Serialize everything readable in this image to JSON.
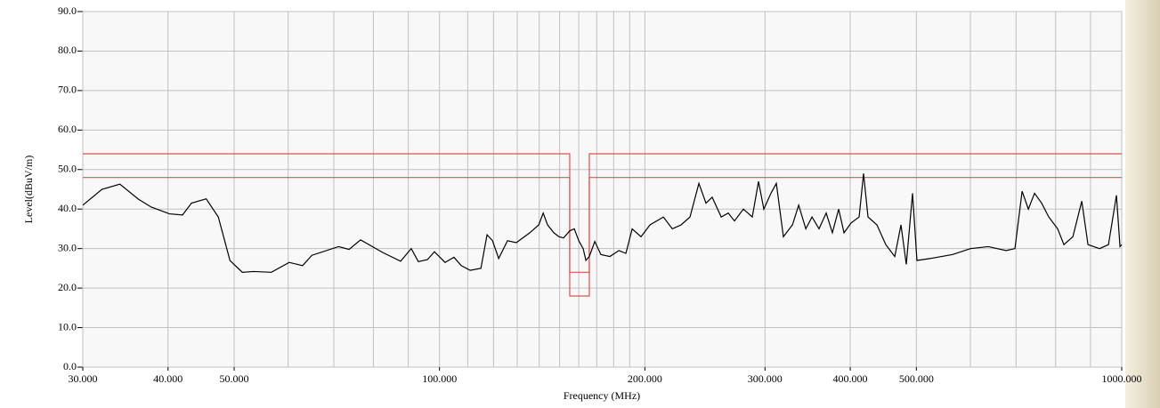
{
  "chart_data": {
    "type": "line",
    "xscale": "log",
    "grid": true,
    "xlabel": "Frequency (MHz)",
    "ylabel": "Level(dBuV/m)",
    "xlim": [
      30,
      1000
    ],
    "ylim": [
      0,
      90
    ],
    "xticks": [
      {
        "value": 30,
        "label": "30.000"
      },
      {
        "value": 40,
        "label": "40.000"
      },
      {
        "value": 50,
        "label": "50.000"
      },
      {
        "value": 100,
        "label": "100.000"
      },
      {
        "value": 200,
        "label": "200.000"
      },
      {
        "value": 300,
        "label": "300.000"
      },
      {
        "value": 400,
        "label": "400.000"
      },
      {
        "value": 500,
        "label": "500.000"
      },
      {
        "value": 1000,
        "label": "1000.000"
      }
    ],
    "xgrid": [
      60,
      70,
      80,
      90,
      110,
      120,
      130,
      140,
      150,
      160,
      170,
      180,
      190,
      600,
      700,
      800,
      900
    ],
    "yticks": [
      {
        "value": 0,
        "label": "0.0"
      },
      {
        "value": 10,
        "label": "10.0"
      },
      {
        "value": 20,
        "label": "20.0"
      },
      {
        "value": 30,
        "label": "30.0"
      },
      {
        "value": 40,
        "label": "40.0"
      },
      {
        "value": 50,
        "label": "50.0"
      },
      {
        "value": 60,
        "label": "60.0"
      },
      {
        "value": 70,
        "label": "70.0"
      },
      {
        "value": 80,
        "label": "80.0"
      },
      {
        "value": 90,
        "label": "90.0"
      }
    ],
    "series": [
      {
        "color": "#e05050",
        "x": [
          30,
          155.2,
          155.2,
          165.8,
          165.8,
          1000
        ],
        "values": [
          54,
          54,
          18,
          18,
          54,
          54
        ]
      },
      {
        "color": "#e05050",
        "x": [
          30,
          155.2,
          155.2,
          165.8,
          165.8,
          1000
        ],
        "values": [
          48,
          48,
          24,
          24,
          48,
          48
        ]
      },
      {
        "color": "#000000",
        "x": [
          30.0,
          32.0,
          34.0,
          36.2,
          37.8,
          40.2,
          42.0,
          43.3,
          45.5,
          47.4,
          49.3,
          51.4,
          53.4,
          56.7,
          60.2,
          63.0,
          65.0,
          71.1,
          73.7,
          76.6,
          82.6,
          87.7,
          90.9,
          93.1,
          96.0,
          98.3,
          101.9,
          105.0,
          107.6,
          110.9,
          115.0,
          117.4,
          119.6,
          122.1,
          125.8,
          129.6,
          135.6,
          139.8,
          141.9,
          144.0,
          147.1,
          149.7,
          152.0,
          155.2,
          157.6,
          160.0,
          162.4,
          163.9,
          165.8,
          168.9,
          172.4,
          177.7,
          183.2,
          187.6,
          191.6,
          197.4,
          203.5,
          212.9,
          219.4,
          226.0,
          232.9,
          240.0,
          245.8,
          251.0,
          258.8,
          265.0,
          270.6,
          278.9,
          287.4,
          293.5,
          298.8,
          306.1,
          311.7,
          319.2,
          329.1,
          336.1,
          344.3,
          351.6,
          360.0,
          368.8,
          376.6,
          384.7,
          391.7,
          401.2,
          412.2,
          418.4,
          424.7,
          437.7,
          451.0,
          464.9,
          474.7,
          483.3,
          493.6,
          501.0,
          524.3,
          565.2,
          600.1,
          637.4,
          676.7,
          697.4,
          714.5,
          729.7,
          745.1,
          763.2,
          781.7,
          805.6,
          822.7,
          848.0,
          873.9,
          892.4,
          927.9,
          956.3,
          982.3,
          994.2,
          1000
        ],
        "values": [
          41,
          45,
          46.3,
          42.5,
          40.5,
          38.8,
          38.5,
          41.5,
          42.6,
          38,
          27,
          24,
          24.2,
          24,
          26.5,
          25.7,
          28.3,
          30.5,
          29.8,
          32.2,
          29,
          26.8,
          30,
          26.7,
          27.2,
          29.2,
          26.5,
          27.8,
          25.7,
          24.5,
          25,
          33.5,
          32,
          27.5,
          32,
          31.5,
          34,
          36,
          39,
          36,
          34,
          33,
          32.7,
          34.5,
          35,
          32,
          30,
          27,
          28,
          31.8,
          28.5,
          28,
          29.5,
          28.8,
          35,
          33,
          36,
          38,
          35,
          36,
          38,
          46.5,
          41.5,
          43,
          38,
          39,
          37,
          40,
          38,
          47,
          40,
          44,
          46.5,
          33,
          36,
          41,
          35,
          38,
          35,
          39,
          34,
          40,
          34,
          36.5,
          38,
          49,
          38,
          36,
          31,
          28,
          36,
          26,
          44,
          27,
          27.5,
          28.5,
          30,
          30.5,
          29.5,
          30,
          44.5,
          40,
          44,
          41.5,
          38,
          35,
          31,
          33,
          42,
          31,
          30,
          31,
          43.5,
          30.5,
          31
        ]
      }
    ]
  }
}
